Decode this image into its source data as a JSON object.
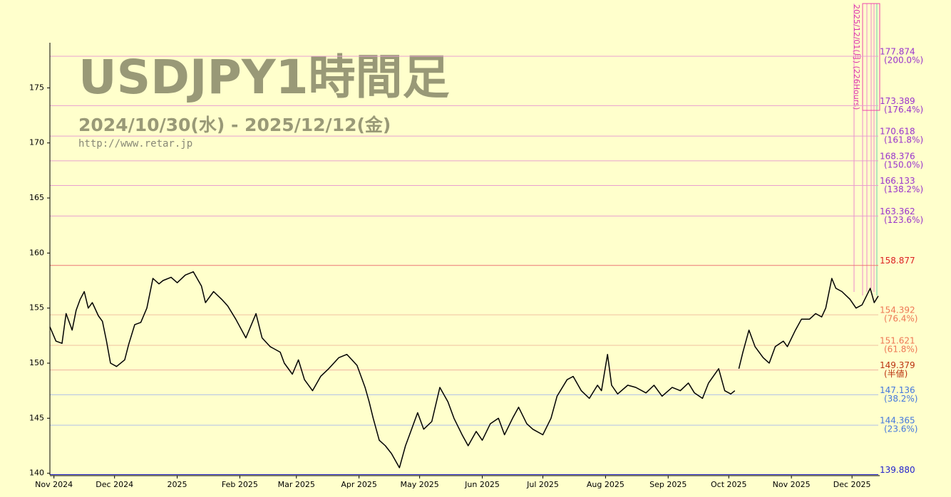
{
  "chart_data": {
    "type": "line",
    "title": "USDJPY1時間足",
    "subtitle": "2024/10/30(水) - 2025/12/12(金)",
    "url": "http://www.retar.jp",
    "annotation": "2025/12/01(月) (226Hours)",
    "xlim": [
      0,
      410
    ],
    "ylim": [
      139.85,
      179.1
    ],
    "xticks": [
      {
        "value": 2,
        "label": "Nov 2024"
      },
      {
        "value": 32,
        "label": "Dec 2024"
      },
      {
        "value": 63,
        "label": "2025"
      },
      {
        "value": 94,
        "label": "Feb 2025"
      },
      {
        "value": 122,
        "label": "Mar 2025"
      },
      {
        "value": 153,
        "label": "Apr 2025"
      },
      {
        "value": 183,
        "label": "May 2025"
      },
      {
        "value": 214,
        "label": "Jun 2025"
      },
      {
        "value": 244,
        "label": "Jul 2025"
      },
      {
        "value": 275,
        "label": "Aug 2025"
      },
      {
        "value": 306,
        "label": "Sep 2025"
      },
      {
        "value": 336,
        "label": "Oct 2025"
      },
      {
        "value": 367,
        "label": "Nov 2025"
      },
      {
        "value": 397,
        "label": "Dec 2025"
      }
    ],
    "yticks": [
      140,
      145,
      150,
      155,
      160,
      165,
      170,
      175
    ],
    "levels": [
      {
        "value": 177.874,
        "label": "177.874",
        "ratio": "(200.0%)",
        "color": "#9933cc",
        "line": "#e8a0d0"
      },
      {
        "value": 173.389,
        "label": "173.389",
        "ratio": "(176.4%)",
        "color": "#9933cc",
        "line": "#e8a0d0"
      },
      {
        "value": 170.618,
        "label": "170.618",
        "ratio": "(161.8%)",
        "color": "#9933cc",
        "line": "#e8a0d0"
      },
      {
        "value": 168.376,
        "label": "168.376",
        "ratio": "(150.0%)",
        "color": "#9933cc",
        "line": "#e8a0d0"
      },
      {
        "value": 166.133,
        "label": "166.133",
        "ratio": "(138.2%)",
        "color": "#9933cc",
        "line": "#e8a0d0"
      },
      {
        "value": 163.362,
        "label": "163.362",
        "ratio": "(123.6%)",
        "color": "#9933cc",
        "line": "#e8a0d0"
      },
      {
        "value": 158.877,
        "label": "158.877",
        "color": "#dd2222",
        "line": "#ee7777"
      },
      {
        "value": 154.392,
        "label": "154.392",
        "ratio": "(76.4%)",
        "color": "#ee7755",
        "line": "#f0c0a0"
      },
      {
        "value": 151.621,
        "label": "151.621",
        "ratio": "(61.8%)",
        "color": "#ee7755",
        "line": "#f0c0a0"
      },
      {
        "value": 149.379,
        "label": "149.379",
        "ratio": "(半値)",
        "color": "#bb3311",
        "line": "#f0b0a0"
      },
      {
        "value": 147.136,
        "label": "147.136",
        "ratio": "(38.2%)",
        "color": "#4477dd",
        "line": "#b0c0e8"
      },
      {
        "value": 144.365,
        "label": "144.365",
        "ratio": "(23.6%)",
        "color": "#4477dd",
        "line": "#b0c0e8"
      },
      {
        "value": 139.88,
        "label": "139.880",
        "color": "#2222cc",
        "line": "#2222cc"
      }
    ],
    "series": [
      {
        "name": "USDJPY",
        "color": "#000000",
        "x": [
          0,
          3,
          6,
          8,
          11,
          13,
          15,
          17,
          19,
          21,
          24,
          26,
          28,
          30,
          33,
          37,
          39,
          42,
          45,
          48,
          51,
          54,
          56,
          60,
          63,
          67,
          71,
          75,
          77,
          81,
          85,
          88,
          92,
          97,
          102,
          105,
          109,
          114,
          116,
          120,
          123,
          126,
          130,
          134,
          138,
          143,
          147,
          152,
          156,
          158,
          160,
          163,
          166,
          169,
          173,
          176,
          178,
          182,
          185,
          189,
          193,
          197,
          200,
          204,
          207,
          211,
          214,
          218,
          222,
          225,
          229,
          232,
          236,
          239,
          244,
          248,
          251,
          256,
          259,
          263,
          267,
          271,
          273,
          276,
          278,
          281,
          286,
          290,
          295,
          299,
          303,
          308,
          312,
          316,
          319,
          323,
          326,
          331,
          334,
          337,
          339,
          340,
          341,
          343,
          346,
          349,
          353,
          356,
          359,
          363,
          365,
          369,
          372,
          376,
          379,
          382,
          384,
          387,
          389,
          392,
          396,
          399,
          402,
          406,
          408,
          410
        ],
        "values": [
          153.3,
          152,
          151.8,
          154.5,
          153,
          154.8,
          155.8,
          156.5,
          155,
          155.5,
          154.3,
          153.8,
          152,
          150,
          149.7,
          150.3,
          151.7,
          153.5,
          153.7,
          155,
          157.7,
          157.2,
          157.5,
          157.8,
          157.3,
          158,
          158.3,
          157,
          155.5,
          156.5,
          155.8,
          155.2,
          154,
          152.3,
          154.5,
          152.3,
          151.5,
          151,
          150,
          149,
          150.3,
          148.5,
          147.5,
          148.8,
          149.5,
          150.5,
          150.8,
          149.8,
          147.8,
          146.5,
          145,
          143,
          142.5,
          141.8,
          140.5,
          142.5,
          143.5,
          145.5,
          144,
          144.7,
          147.8,
          146.5,
          145,
          143.5,
          142.5,
          143.8,
          143,
          144.5,
          145,
          143.5,
          145,
          146,
          144.5,
          144,
          143.5,
          145,
          147,
          148.5,
          148.8,
          147.5,
          146.8,
          148,
          147.5,
          150.8,
          148,
          147.2,
          148,
          147.8,
          147.3,
          148,
          147,
          147.8,
          147.5,
          148.2,
          147.3,
          146.8,
          148.2,
          149.5,
          147.5,
          147.2,
          147.5,
          null,
          149.5,
          151,
          153,
          151.5,
          150.5,
          150,
          151.5,
          152,
          151.5,
          153,
          154,
          154,
          154.5,
          154.2,
          155,
          157.7,
          156.8,
          156.5,
          155.8,
          155,
          155.3,
          156.8,
          155.5,
          156.1
        ]
      }
    ]
  }
}
